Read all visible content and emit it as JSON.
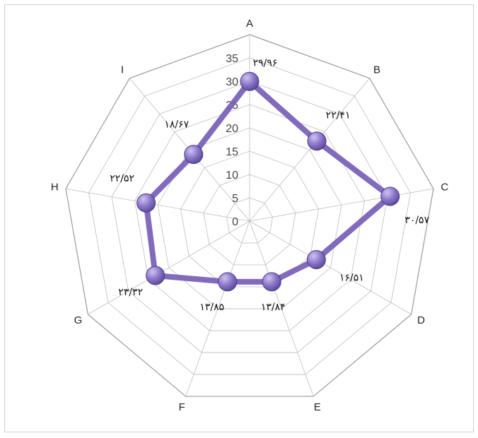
{
  "chart_data": {
    "type": "radar",
    "title": "",
    "categories": [
      "A",
      "B",
      "C",
      "D",
      "E",
      "F",
      "G",
      "H",
      "I"
    ],
    "series": [
      {
        "values": [
          29.96,
          22.41,
          30.57,
          16.51,
          13.84,
          13.85,
          23.32,
          22.52,
          18.67
        ],
        "data_labels": [
          "۲۹/۹۶",
          "۲۲/۴۱",
          "۳۰/۵۷",
          "۱۶/۵۱",
          "۱۳/۸۴",
          "۱۳/۸۵",
          "۲۳/۳۲",
          "۲۲/۵۲",
          "۱۸/۶۷"
        ],
        "color": "#7b62b8"
      }
    ],
    "rlim": [
      0,
      40
    ],
    "ticks": [
      0,
      5,
      10,
      15,
      20,
      25,
      30,
      35
    ],
    "tick_labels": [
      "0",
      "5",
      "10",
      "15",
      "20",
      "25",
      "30",
      "35"
    ],
    "grid": true,
    "legend": "none"
  },
  "colors": {
    "series_line": "#7b62b8",
    "marker_fill": "#8a74c8",
    "grid": "#bdbdbd",
    "outer_ring": "#9a9a9a"
  }
}
